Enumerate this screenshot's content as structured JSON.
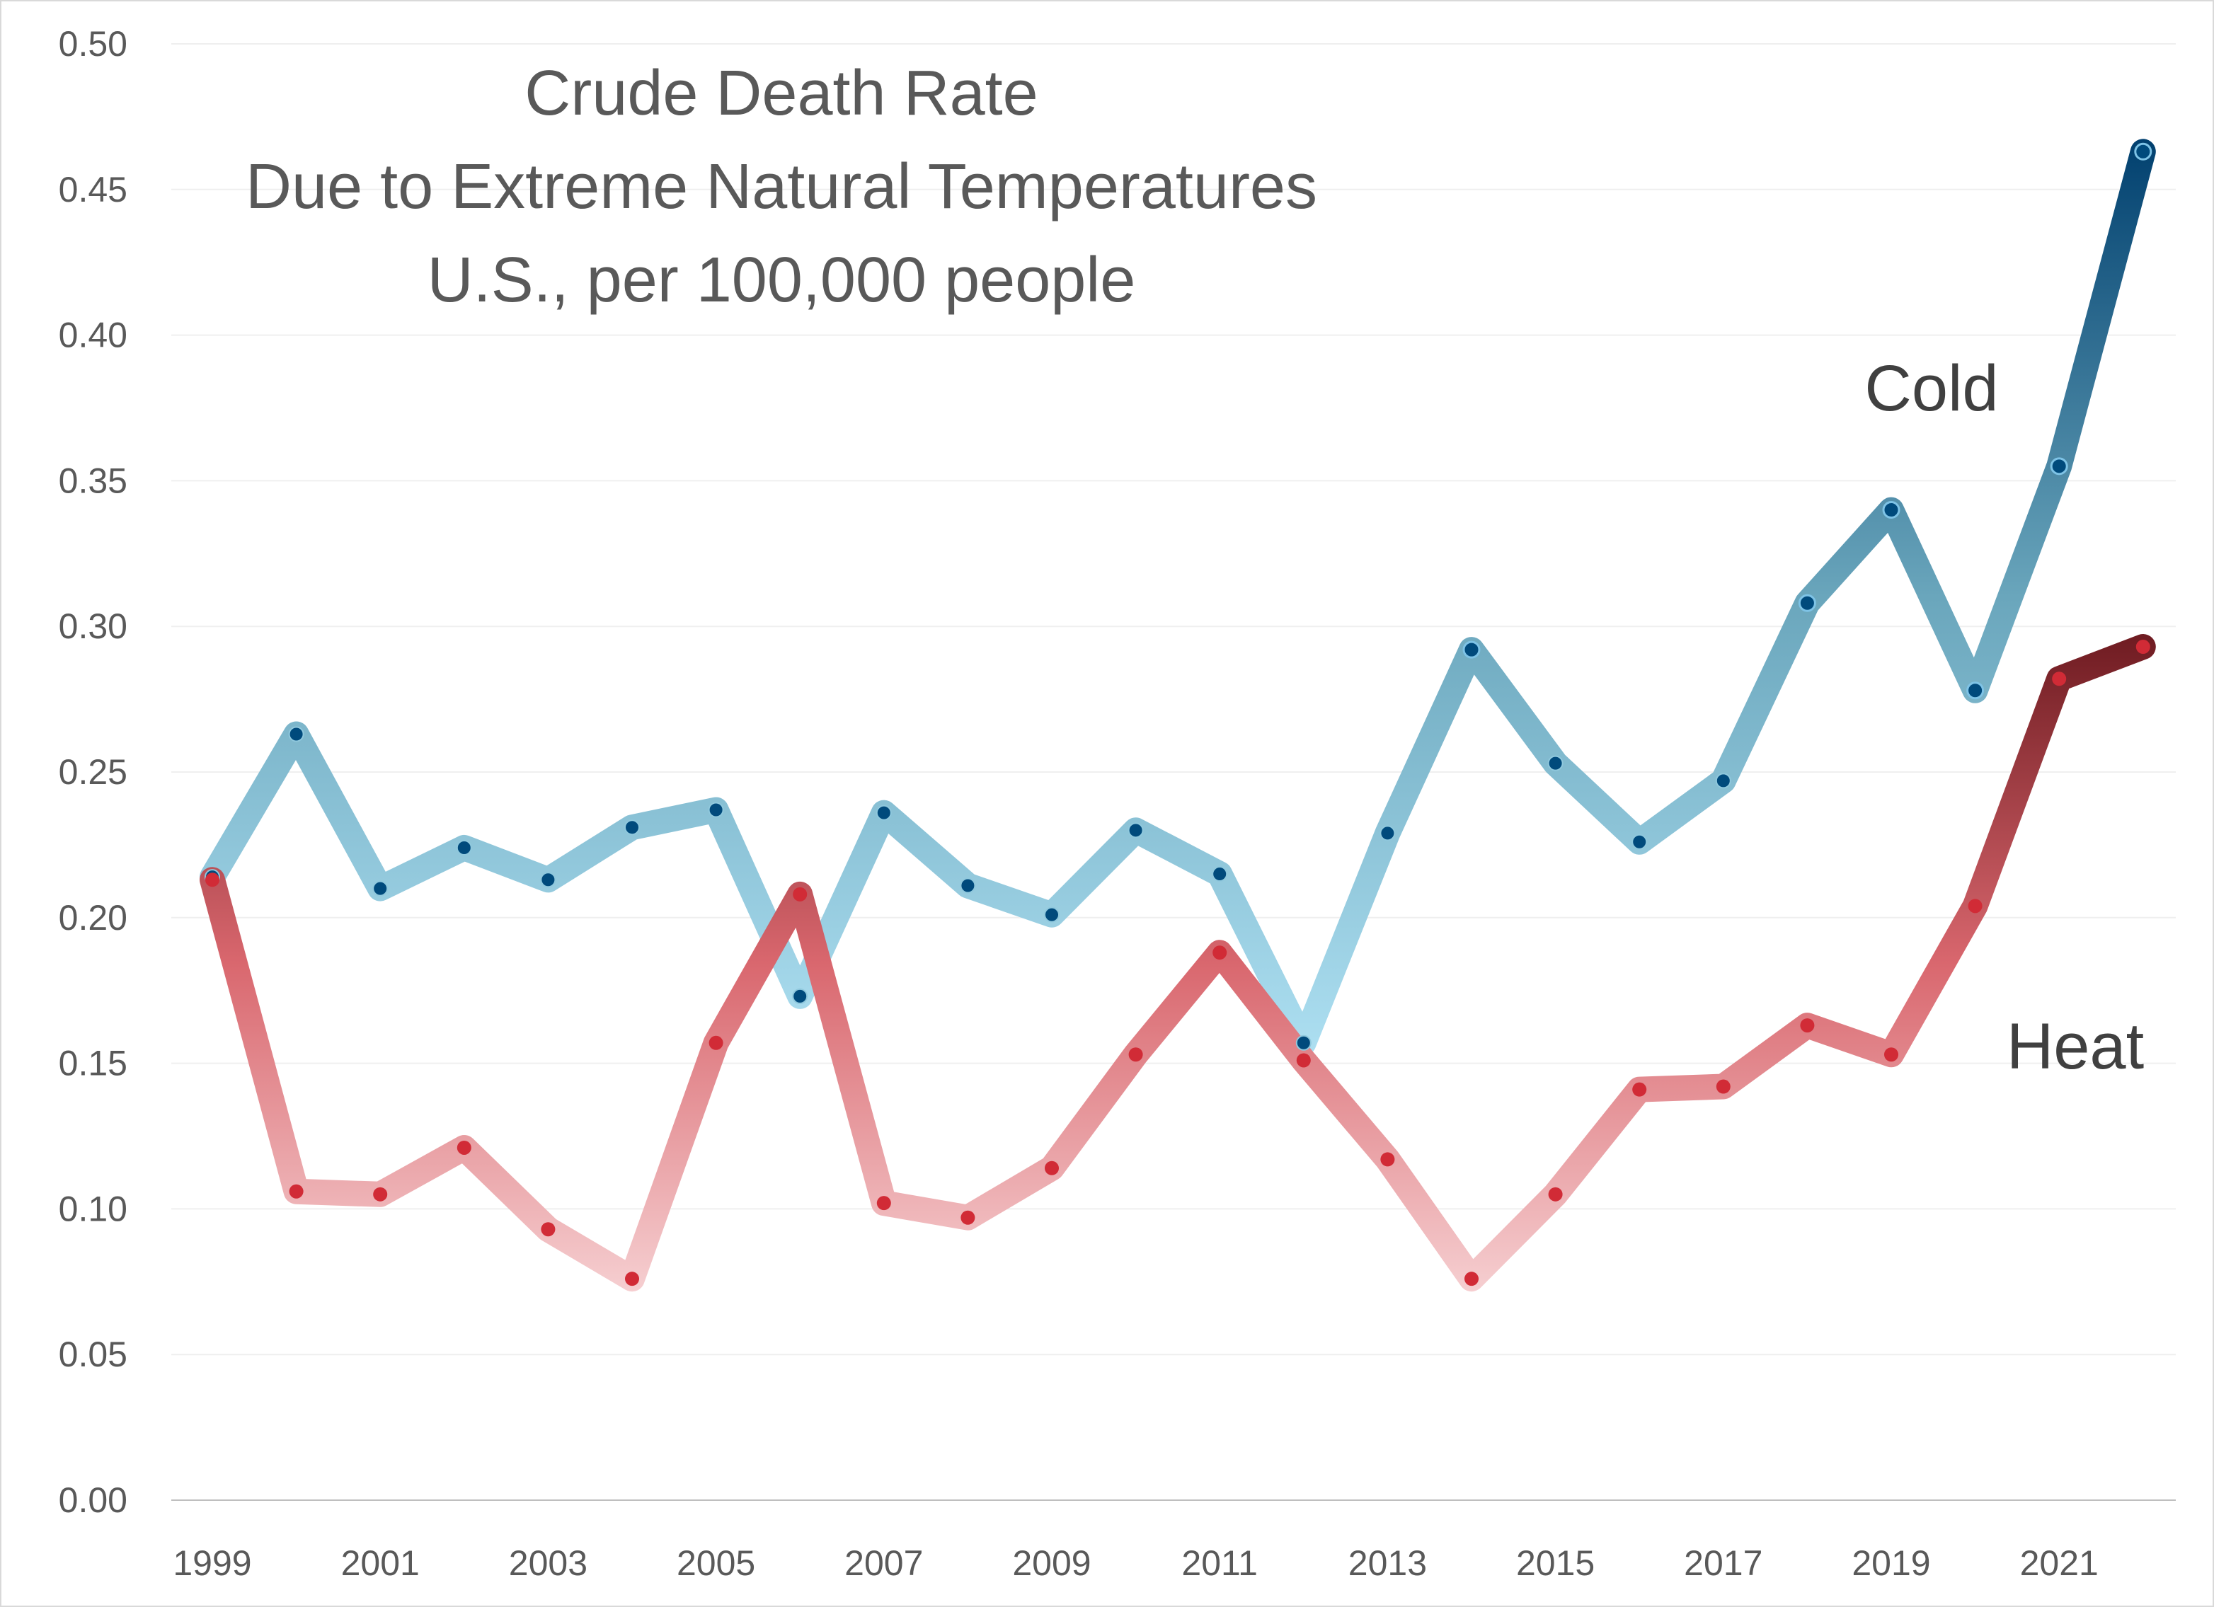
{
  "chart_data": {
    "type": "line",
    "title_lines": [
      "Crude Death Rate",
      "Due to Extreme Natural Temperatures",
      "U.S., per 100,000 people"
    ],
    "xlabel": "",
    "ylabel": "",
    "x": [
      1999,
      2000,
      2001,
      2002,
      2003,
      2004,
      2005,
      2006,
      2007,
      2008,
      2009,
      2010,
      2011,
      2012,
      2013,
      2014,
      2015,
      2016,
      2017,
      2018,
      2019,
      2020,
      2021,
      2022
    ],
    "x_tick_labels": [
      "1999",
      "2001",
      "2003",
      "2005",
      "2007",
      "2009",
      "2011",
      "2013",
      "2015",
      "2017",
      "2019",
      "2021"
    ],
    "ylim": [
      0,
      0.5
    ],
    "y_tick_labels": [
      "0.00",
      "0.05",
      "0.10",
      "0.15",
      "0.20",
      "0.25",
      "0.30",
      "0.35",
      "0.40",
      "0.45",
      "0.50"
    ],
    "grid": true,
    "series": [
      {
        "name": "Cold",
        "values": [
          0.214,
          0.263,
          0.21,
          0.224,
          0.213,
          0.231,
          0.237,
          0.173,
          0.236,
          0.211,
          0.201,
          0.23,
          0.215,
          0.157,
          0.229,
          0.292,
          0.253,
          0.226,
          0.247,
          0.308,
          0.34,
          0.278,
          0.355,
          0.463
        ],
        "colors": {
          "low": "#aee0f2",
          "mid": "#6aa6bc",
          "high": "#003f6e"
        },
        "marker_color": "#004a7c"
      },
      {
        "name": "Heat",
        "values": [
          0.213,
          0.106,
          0.105,
          0.121,
          0.093,
          0.076,
          0.157,
          0.208,
          0.102,
          0.097,
          0.114,
          0.153,
          0.188,
          0.151,
          0.117,
          0.076,
          0.105,
          0.141,
          0.142,
          0.163,
          0.153,
          0.204,
          0.282,
          0.293
        ],
        "colors": {
          "low": "#f6d0d2",
          "mid": "#d9676e",
          "high": "#6d1a20"
        },
        "marker_color": "#d12b36"
      }
    ]
  }
}
